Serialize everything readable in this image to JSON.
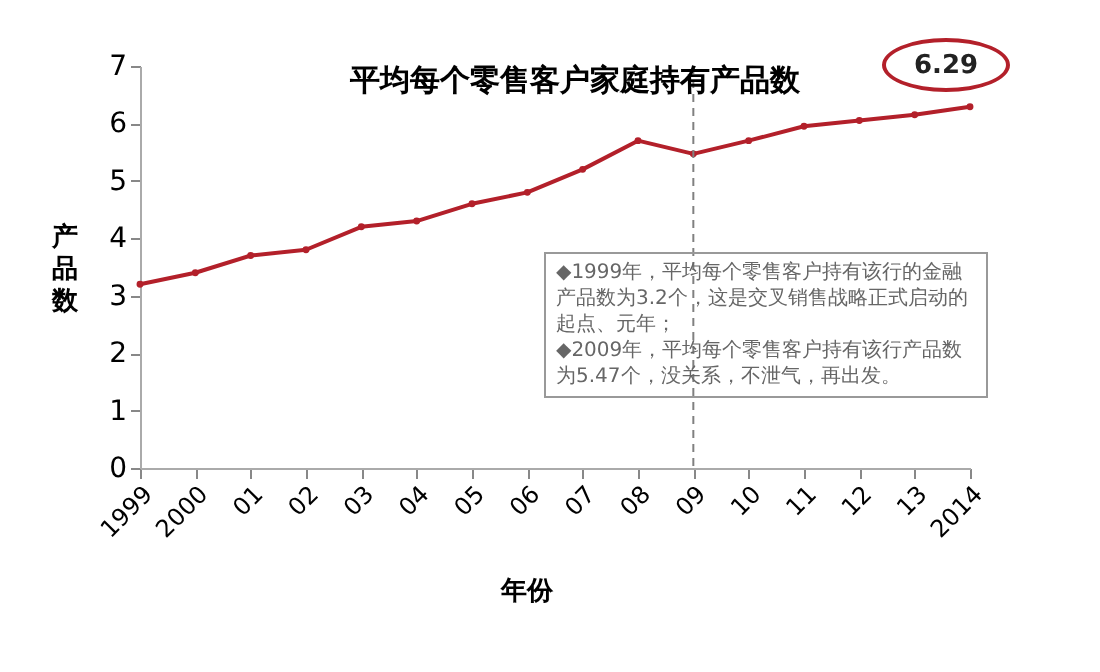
{
  "chart_data": {
    "type": "line",
    "title": "平均每个零售客户家庭持有产品数",
    "xlabel": "年份",
    "ylabel": "产品数",
    "categories": [
      "1999",
      "2000",
      "01",
      "02",
      "03",
      "04",
      "05",
      "06",
      "07",
      "08",
      "09",
      "10",
      "11",
      "12",
      "13",
      "2014"
    ],
    "series": [
      {
        "color": "#b3202a",
        "values": [
          3.2,
          3.4,
          3.7,
          3.8,
          4.2,
          4.3,
          4.6,
          4.8,
          5.2,
          5.7,
          5.47,
          5.7,
          5.95,
          6.05,
          6.15,
          6.29
        ],
        "value_labels": [
          null,
          null,
          null,
          null,
          null,
          null,
          null,
          null,
          null,
          null,
          null,
          null,
          null,
          null,
          null,
          "6.29"
        ]
      }
    ],
    "ylim": [
      0,
      7
    ],
    "yticks": [
      0,
      1,
      2,
      3,
      4,
      5,
      6,
      7
    ],
    "grid": false,
    "marker": "circle",
    "line_style": "solid",
    "ref_lines": [
      {
        "axis": "x",
        "value": "09",
        "color": "#808080",
        "line_style": "dashed"
      }
    ],
    "annotations": [
      "◆1999年，平均每个零售客户持有该行的金融产品数为3.2个，这是交叉销售战略正式启动的起点、元年；\n◆2009年，平均每个零售客户持有该行产品数为5.47个，没关系，不泄气，再出发。"
    ]
  }
}
